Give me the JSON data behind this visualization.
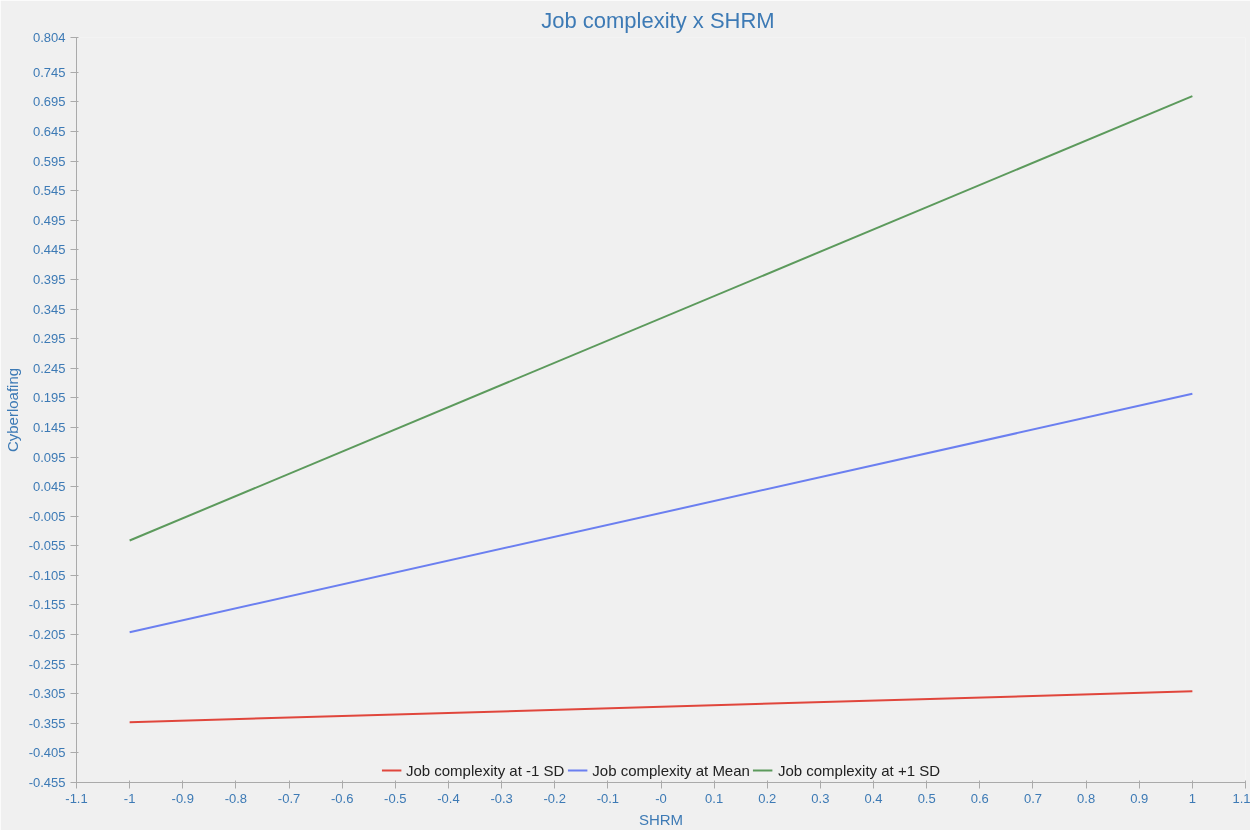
{
  "chart_data": {
    "type": "line",
    "title": "Job complexity x  SHRM",
    "xlabel": "SHRM",
    "ylabel": "Cyberloafing",
    "x": [
      -1,
      1
    ],
    "series": [
      {
        "name": "Job complexity at -1 SD",
        "color": "#e0463c",
        "values": [
          -0.353,
          -0.301
        ]
      },
      {
        "name": "Job complexity at Mean",
        "color": "#6b7ff0",
        "values": [
          -0.201,
          0.202
        ]
      },
      {
        "name": "Job complexity at +1 SD",
        "color": "#5c9a5c",
        "values": [
          -0.046,
          0.705
        ]
      }
    ],
    "xlim": [
      -1.1,
      1.1
    ],
    "ylim": [
      -0.455,
      0.804
    ],
    "xticks": [
      -1.1,
      -1,
      -0.9,
      -0.8,
      -0.7,
      -0.6,
      -0.5,
      -0.4,
      -0.3,
      -0.2,
      -0.1,
      {
        "value": 0,
        "label": "-0"
      },
      0.1,
      0.2,
      0.3,
      0.4,
      0.5,
      0.6,
      0.7,
      0.8,
      0.9,
      1,
      1.1
    ],
    "yticks": [
      -0.455,
      -0.405,
      -0.355,
      -0.305,
      -0.255,
      -0.205,
      -0.155,
      -0.105,
      -0.055,
      -0.005,
      0.045,
      0.095,
      0.145,
      0.195,
      0.245,
      0.295,
      0.345,
      0.395,
      0.445,
      0.495,
      0.545,
      0.595,
      0.645,
      0.695,
      0.745,
      0.804
    ],
    "grid": false,
    "legend": "bottom",
    "marker": "none",
    "line_style": "solid"
  }
}
